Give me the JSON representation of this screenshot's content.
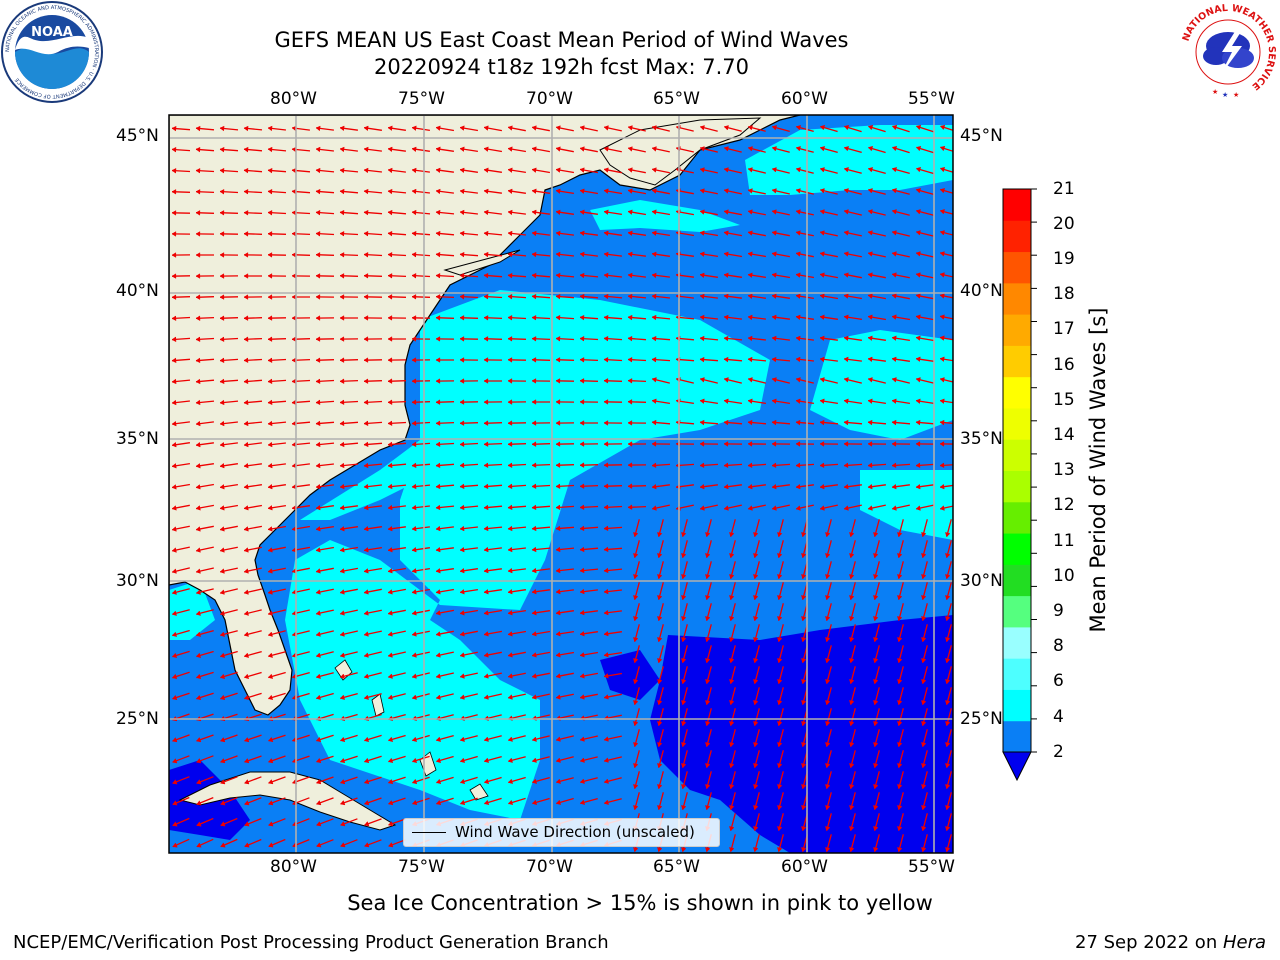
{
  "title": {
    "line1": "GEFS MEAN US East Coast Mean Period of Wind Waves",
    "line2": "20220924 t18z 192h fcst   Max: 7.70"
  },
  "map": {
    "lon_labels": [
      "80°W",
      "75°W",
      "70°W",
      "65°W",
      "60°W",
      "55°W"
    ],
    "lat_labels": [
      "45°N",
      "40°N",
      "35°N",
      "30°N",
      "25°N"
    ],
    "legend_label": "Wind Wave Direction (unscaled)",
    "colors": {
      "land": "#efefdc",
      "water_2_4": "#0a7ff5",
      "water_4_6": "#00ffff",
      "water_lt_2": "#0000ee",
      "arrow": "#ee0000",
      "grid": "#b0b0b0",
      "coast": "#000000"
    }
  },
  "colorbar": {
    "title": "Mean Period of Wind Waves [s]",
    "ticks": [
      "2",
      "4",
      "6",
      "8",
      "9",
      "10",
      "11",
      "12",
      "13",
      "14",
      "15",
      "16",
      "17",
      "18",
      "19",
      "20",
      "21"
    ],
    "colors": [
      "#0a7ff5",
      "#00ffff",
      "#4dffff",
      "#99ffff",
      "#55ff7f",
      "#22dd22",
      "#00ff00",
      "#66ee00",
      "#aaff00",
      "#ccff00",
      "#eeff00",
      "#ffff00",
      "#ffcc00",
      "#ffaa00",
      "#ff8800",
      "#ff5500",
      "#ff2200",
      "#ff0000"
    ],
    "under_color": "#0000ee"
  },
  "logos": {
    "noaa_text": "NOAA",
    "noaa_ring": "NATIONAL OCEANIC AND ATMOSPHERIC ADMINISTRATION · U.S. DEPARTMENT OF COMMERCE",
    "nws_ring": "NATIONAL WEATHER SERVICE"
  },
  "footer": {
    "note": "Sea Ice Concentration > 15% is shown in pink to yellow",
    "credit": "NCEP/EMC/Verification Post Processing Product Generation Branch",
    "date_prefix": "27 Sep 2022 on ",
    "host": "Hera"
  }
}
